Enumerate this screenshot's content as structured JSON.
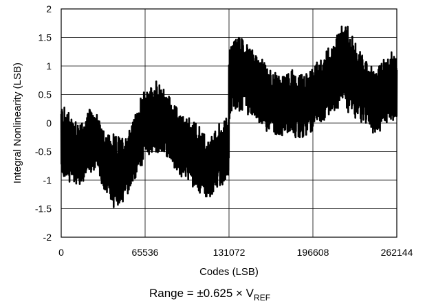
{
  "chart_data": {
    "type": "line",
    "title": "",
    "xlabel": "Codes (LSB)",
    "ylabel": "Integral Nonlinearity (LSB)",
    "xlim": [
      0,
      262144
    ],
    "ylim": [
      -2,
      2
    ],
    "xticks": [
      0,
      65536,
      131072,
      196608,
      262144
    ],
    "yticks": [
      -2,
      -1.5,
      -1,
      -0.5,
      0,
      0.5,
      1,
      1.5,
      2
    ],
    "xtick_labels": [
      "0",
      "65536",
      "131072",
      "196608",
      "262144"
    ],
    "ytick_labels": [
      "-2",
      "-1.5",
      "-1",
      "-0.5",
      "0",
      "0.5",
      "1",
      "1.5",
      "2"
    ],
    "grid": true,
    "legend": "none",
    "series_color": "#000000",
    "series": [
      {
        "x": [
          0,
          8192,
          16384,
          24576,
          32768,
          40960,
          49152,
          57344,
          65536,
          73728,
          81920,
          90112,
          98304,
          106496,
          114688,
          122880,
          131071,
          131072,
          139264,
          147456,
          155648,
          163840,
          172032,
          180224,
          188416,
          196608,
          204800,
          212992,
          221184,
          229376,
          237568,
          245760,
          253952,
          262144
        ],
        "center": [
          -0.3,
          -0.45,
          -0.55,
          -0.25,
          -0.6,
          -0.85,
          -0.8,
          -0.45,
          0.0,
          0.1,
          0.0,
          -0.3,
          -0.45,
          -0.55,
          -0.85,
          -0.6,
          -0.45,
          0.7,
          0.9,
          0.75,
          0.55,
          0.4,
          0.3,
          0.35,
          0.3,
          0.45,
          0.6,
          0.85,
          1.05,
          0.75,
          0.55,
          0.35,
          0.6,
          0.6
        ],
        "amplitude": [
          0.65,
          0.6,
          0.55,
          0.55,
          0.5,
          0.6,
          0.55,
          0.55,
          0.6,
          0.6,
          0.55,
          0.55,
          0.5,
          0.6,
          0.5,
          0.55,
          0.55,
          0.6,
          0.7,
          0.6,
          0.55,
          0.55,
          0.5,
          0.55,
          0.5,
          0.55,
          0.55,
          0.6,
          0.75,
          0.65,
          0.55,
          0.55,
          0.6,
          0.6
        ]
      }
    ]
  },
  "footnote": {
    "main": "Range = ±0.625 × V",
    "subscript": "REF"
  }
}
